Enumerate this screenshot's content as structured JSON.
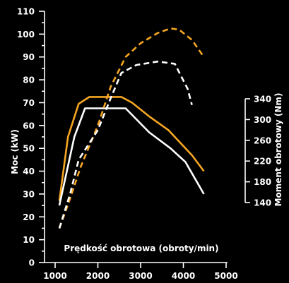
{
  "chart_data": {
    "type": "line",
    "title": "",
    "xlabel": "Prędkość obrotowa (obroty/min)",
    "ylabel": "Moc (kW)",
    "y2label": "Moment obrotowy (Nm)",
    "xlim": [
      1000,
      5000
    ],
    "ylim": [
      0,
      110
    ],
    "y2lim": [
      140,
      340
    ],
    "x_ticks": [
      "1000",
      "2000",
      "3000",
      "4000",
      "5000"
    ],
    "y_ticks": [
      "0",
      "10",
      "20",
      "30",
      "40",
      "50",
      "60",
      "70",
      "80",
      "90",
      "100",
      "110"
    ],
    "y2_ticks": [
      "140",
      "180",
      "220",
      "260",
      "300",
      "340"
    ],
    "grid": false,
    "colors": {
      "background": "#000000",
      "orange": "#f5a623",
      "white": "#ffffff"
    },
    "series": [
      {
        "color": "#f5a623",
        "dash": false,
        "axis": "left",
        "x": [
          1100,
          1300,
          1550,
          1800,
          2200,
          2550,
          2800,
          3200,
          3650,
          4200,
          4480
        ],
        "y": [
          27,
          55,
          69.5,
          72.5,
          72.5,
          72.5,
          70,
          64,
          58,
          47,
          40
        ]
      },
      {
        "color": "#ffffff",
        "dash": false,
        "axis": "left",
        "x": [
          1100,
          1450,
          1700,
          2200,
          2650,
          3200,
          3700,
          4050,
          4480
        ],
        "y": [
          25,
          55,
          67.5,
          67.5,
          67.5,
          57,
          50,
          44,
          30
        ]
      },
      {
        "color": "#f5a623",
        "dash": true,
        "axis": "left",
        "x": [
          1100,
          1350,
          1600,
          2000,
          2300,
          2650,
          3000,
          3400,
          3700,
          3900,
          4200,
          4480
        ],
        "y": [
          15,
          28,
          42,
          60,
          77,
          90,
          96,
          100.5,
          102.5,
          102,
          97.5,
          90
        ]
      },
      {
        "color": "#ffffff",
        "dash": true,
        "axis": "left",
        "x": [
          1100,
          1350,
          1550,
          2000,
          2300,
          2550,
          2900,
          3400,
          3800,
          4100,
          4200
        ],
        "y": [
          15,
          30,
          45,
          58,
          72,
          83,
          86.5,
          88,
          87,
          76,
          69
        ]
      }
    ]
  }
}
